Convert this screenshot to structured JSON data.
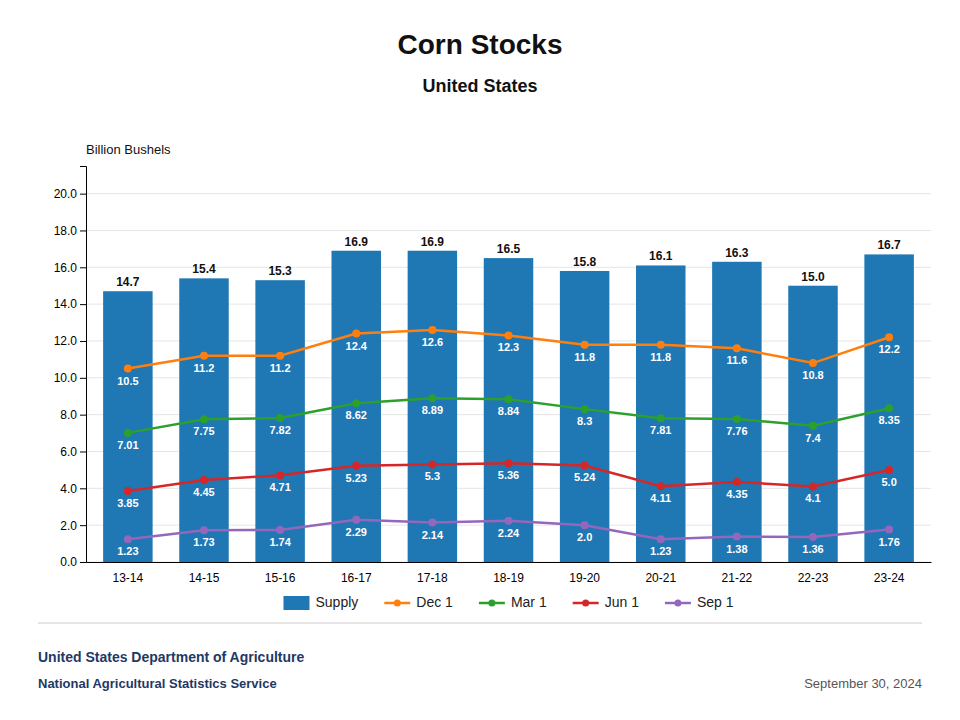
{
  "chart_data": {
    "type": "bar",
    "title": "Corn Stocks",
    "subtitle": "United States",
    "ylabel": "Billion Bushels",
    "categories": [
      "13-14",
      "14-15",
      "15-16",
      "16-17",
      "17-18",
      "18-19",
      "19-20",
      "20-21",
      "21-22",
      "22-23",
      "23-24"
    ],
    "series": [
      {
        "name": "Supply",
        "type": "bar",
        "values": [
          14.7,
          15.4,
          15.3,
          16.9,
          16.9,
          16.5,
          15.8,
          16.1,
          16.3,
          15.0,
          16.7
        ],
        "value_labels": [
          "14.7",
          "15.4",
          "15.3",
          "16.9",
          "16.9",
          "16.5",
          "15.8",
          "16.1",
          "16.3",
          "15.0",
          "16.7"
        ]
      },
      {
        "name": "Dec 1",
        "type": "line",
        "marker": "circle",
        "values": [
          10.5,
          11.2,
          11.2,
          12.4,
          12.6,
          12.3,
          11.8,
          11.8,
          11.6,
          10.8,
          12.2
        ],
        "value_labels": [
          "10.5",
          "11.2",
          "11.2",
          "12.4",
          "12.6",
          "12.3",
          "11.8",
          "11.8",
          "11.6",
          "10.8",
          "12.2"
        ]
      },
      {
        "name": "Mar 1",
        "type": "line",
        "marker": "circle",
        "values": [
          7.01,
          7.75,
          7.82,
          8.62,
          8.89,
          8.84,
          8.3,
          7.81,
          7.76,
          7.4,
          8.35
        ],
        "value_labels": [
          "7.01",
          "7.75",
          "7.82",
          "8.62",
          "8.89",
          "8.84",
          "8.3",
          "7.81",
          "7.76",
          "7.4",
          "8.35"
        ]
      },
      {
        "name": "Jun 1",
        "type": "line",
        "marker": "circle",
        "values": [
          3.85,
          4.45,
          4.71,
          5.23,
          5.3,
          5.36,
          5.24,
          4.11,
          4.35,
          4.1,
          5.0
        ],
        "value_labels": [
          "3.85",
          "4.45",
          "4.71",
          "5.23",
          "5.3",
          "5.36",
          "5.24",
          "4.11",
          "4.35",
          "4.1",
          "5.0"
        ]
      },
      {
        "name": "Sep 1",
        "type": "line",
        "marker": "circle",
        "values": [
          1.23,
          1.73,
          1.74,
          2.29,
          2.14,
          2.24,
          2.0,
          1.23,
          1.38,
          1.36,
          1.76
        ],
        "value_labels": [
          "1.23",
          "1.73",
          "1.74",
          "2.29",
          "2.14",
          "2.24",
          "2.0",
          "1.23",
          "1.38",
          "1.36",
          "1.76"
        ]
      }
    ],
    "ylim": [
      0,
      21.5
    ],
    "yticks": [
      {
        "value": 0.0,
        "label": "0.0"
      },
      {
        "value": 2.0,
        "label": "2.0"
      },
      {
        "value": 4.0,
        "label": "4.0"
      },
      {
        "value": 6.0,
        "label": "6.0"
      },
      {
        "value": 8.0,
        "label": "8.0"
      },
      {
        "value": 10.0,
        "label": "10.0"
      },
      {
        "value": 12.0,
        "label": "12.0"
      },
      {
        "value": 14.0,
        "label": "14.0"
      },
      {
        "value": 16.0,
        "label": "16.0"
      },
      {
        "value": 18.0,
        "label": "18.0"
      },
      {
        "value": 20.0,
        "label": "20.0"
      }
    ],
    "grid": true,
    "legend": "bottom",
    "data_labels": true,
    "annotations": [
      "United States Department of Agriculture",
      "National Agricultural Statistics Service",
      "September 30, 2024"
    ]
  }
}
